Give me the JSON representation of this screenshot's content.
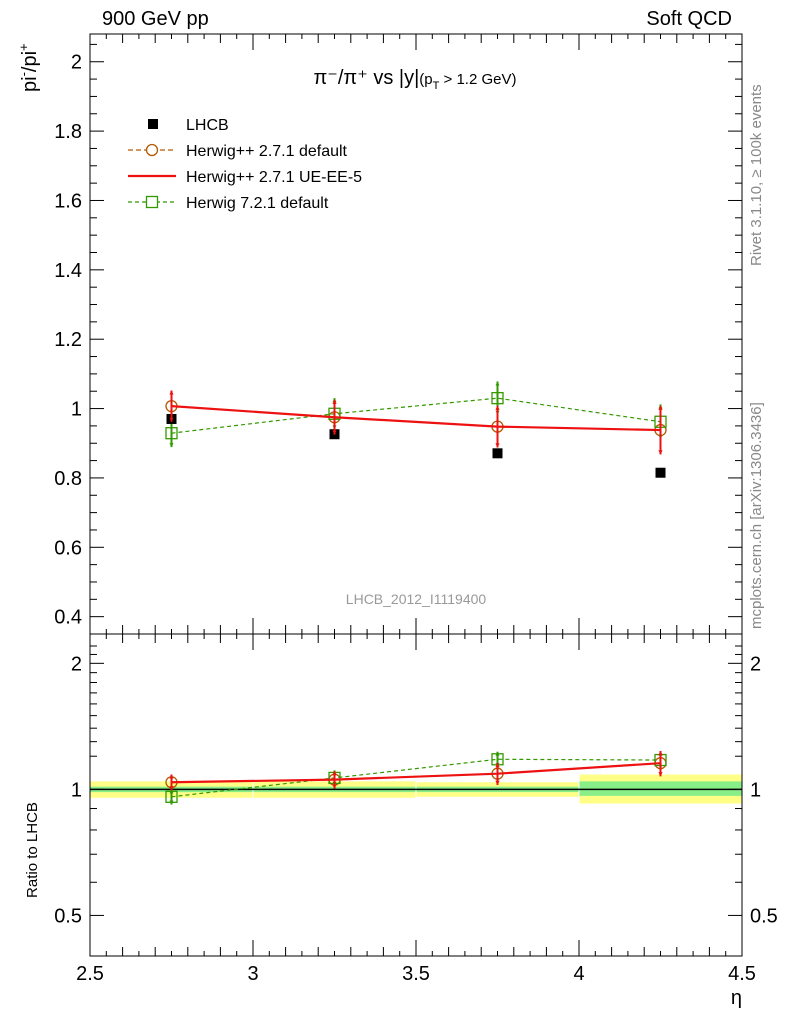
{
  "header": {
    "left": "900 GeV pp",
    "right": "Soft QCD"
  },
  "side_labels": {
    "rivet": "Rivet 3.1.10, ≥ 100k events",
    "mcplots": "mcplots.cern.ch [arXiv:1306.3436]"
  },
  "colors": {
    "data": "#000000",
    "herwigpp_default": "#b35900",
    "herwigpp_ueee5": "#ee1111",
    "herwig7": "#339900",
    "band_inner": "#88ee88",
    "band_outer": "#ffff88"
  },
  "chart_data": [
    {
      "type": "scatter",
      "panel": "main",
      "title": "π⁻/π⁺ vs |y|(p_T > 1.2 GeV)",
      "title_main": "π⁻/π⁺ vs |y|",
      "title_sub": "(p",
      "title_sub_idx": "T",
      "title_sub_rest": " > 1.2 GeV)",
      "ylabel": "pi⁻/pi⁺",
      "ylabel_main": "pi",
      "ylabel_sup1": "-",
      "ylabel_mid": "/pi",
      "ylabel_sup2": "+",
      "xlim": [
        2.5,
        4.5
      ],
      "ylim": [
        0.35,
        2.08
      ],
      "yticks": [
        "0.4",
        "0.6",
        "0.8",
        "1",
        "1.2",
        "1.4",
        "1.6",
        "1.8",
        "2"
      ],
      "analysis_label": "LHCB_2012_I1119400",
      "legend_position": "top-left",
      "x": [
        2.75,
        3.25,
        3.75,
        4.25
      ],
      "series": [
        {
          "name": "LHCB",
          "values": [
            0.97,
            0.926,
            0.871,
            0.815
          ],
          "errors": [
            0.01,
            0.008,
            0.008,
            0.01
          ],
          "style": "data"
        },
        {
          "name": "Herwig++ 2.7.1 default",
          "values": [
            1.007,
            0.975,
            0.948,
            0.938
          ],
          "errors": [
            0.045,
            0.05,
            0.06,
            0.07
          ],
          "style": "circle-dashed"
        },
        {
          "name": "Herwig++ 2.7.1 UE-EE-5",
          "values": [
            1.007,
            0.975,
            0.948,
            0.938
          ],
          "errors": [
            0.045,
            0.05,
            0.06,
            0.07
          ],
          "style": "solid"
        },
        {
          "name": "Herwig 7.2.1 default",
          "values": [
            0.929,
            0.985,
            1.03,
            0.962
          ],
          "errors": [
            0.04,
            0.045,
            0.048,
            0.05
          ],
          "style": "square-dashed"
        }
      ]
    },
    {
      "type": "scatter",
      "panel": "ratio",
      "ylabel": "Ratio to LHCB",
      "xlabel": "η",
      "xlim": [
        2.5,
        4.5
      ],
      "ylim": [
        0.4,
        2.35
      ],
      "log_y": true,
      "xticks": [
        "2.5",
        "3",
        "3.5",
        "4",
        "4.5"
      ],
      "yticks": [
        "0.5",
        "1",
        "2"
      ],
      "bands": [
        {
          "xlo": 2.5,
          "xhi": 3.0,
          "inner": [
            0.985,
            1.015
          ],
          "outer": [
            0.955,
            1.045
          ]
        },
        {
          "xlo": 3.0,
          "xhi": 3.5,
          "inner": [
            0.985,
            1.015
          ],
          "outer": [
            0.955,
            1.045
          ]
        },
        {
          "xlo": 3.5,
          "xhi": 4.0,
          "inner": [
            0.985,
            1.015
          ],
          "outer": [
            0.96,
            1.04
          ]
        },
        {
          "xlo": 4.0,
          "xhi": 4.5,
          "inner": [
            0.965,
            1.045
          ],
          "outer": [
            0.925,
            1.085
          ]
        }
      ],
      "x": [
        2.75,
        3.25,
        3.75,
        4.25
      ],
      "series": [
        {
          "name": "Herwig++ 2.7.1 default",
          "values": [
            1.04,
            1.055,
            1.09,
            1.155
          ],
          "errors": [
            0.045,
            0.05,
            0.065,
            0.08
          ],
          "style": "circle-dashed"
        },
        {
          "name": "Herwig++ 2.7.1 UE-EE-5",
          "values": [
            1.04,
            1.055,
            1.09,
            1.155
          ],
          "errors": [
            0.045,
            0.05,
            0.065,
            0.08
          ],
          "style": "solid"
        },
        {
          "name": "Herwig 7.2.1 default",
          "values": [
            0.96,
            1.065,
            1.18,
            1.175
          ],
          "errors": [
            0.04,
            0.045,
            0.05,
            0.055
          ],
          "style": "square-dashed"
        }
      ]
    }
  ]
}
